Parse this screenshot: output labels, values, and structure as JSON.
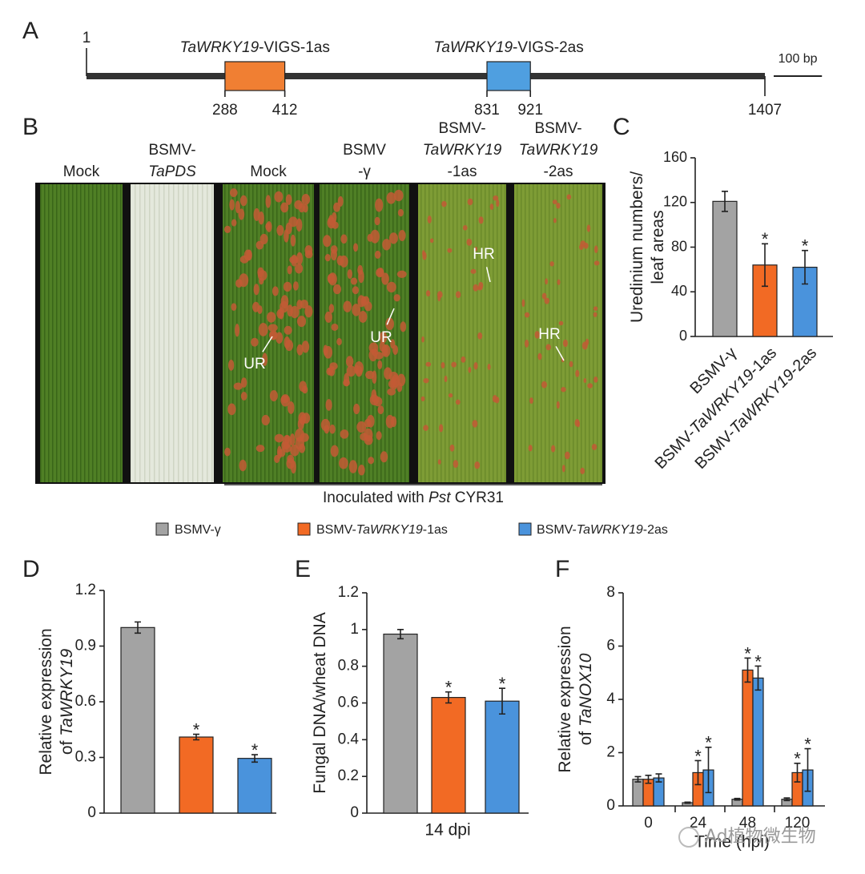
{
  "panel_labels": [
    "A",
    "B",
    "C",
    "D",
    "E",
    "F"
  ],
  "gene_map": {
    "start": 1,
    "end": 1407,
    "fragments": [
      {
        "label": [
          {
            "text": "TaWRKY19",
            "italic": true
          },
          {
            "text": "-VIGS-1as"
          }
        ],
        "start": 288,
        "end": 412,
        "color": "#f07f33"
      },
      {
        "label": [
          {
            "text": "TaWRKY19",
            "italic": true
          },
          {
            "text": "-VIGS-2as"
          }
        ],
        "start": 831,
        "end": 921,
        "color": "#4f9fe0"
      }
    ],
    "scale_bar": {
      "length": 100,
      "label": "100 bp"
    }
  },
  "leaf_panel": {
    "labels": [
      [
        [
          {
            "text": "Mock"
          }
        ]
      ],
      [
        [
          {
            "text": "BSMV-"
          }
        ],
        [
          {
            "text": "TaPDS",
            "italic": true
          }
        ]
      ],
      [
        [
          {
            "text": "Mock"
          }
        ]
      ],
      [
        [
          {
            "text": "BSMV"
          }
        ],
        [
          {
            "text": "-γ"
          }
        ]
      ],
      [
        [
          {
            "text": "BSMV-"
          }
        ],
        [
          {
            "text": "TaWRKY19",
            "italic": true
          }
        ],
        [
          {
            "text": "-1as"
          }
        ]
      ],
      [
        [
          {
            "text": "BSMV-"
          }
        ],
        [
          {
            "text": "TaWRKY19",
            "italic": true
          }
        ],
        [
          {
            "text": "-2as"
          }
        ]
      ]
    ],
    "annotations": [
      {
        "leaf": 2,
        "text": "UR"
      },
      {
        "leaf": 3,
        "text": "UR"
      },
      {
        "leaf": 4,
        "text": "HR"
      },
      {
        "leaf": 5,
        "text": "HR"
      }
    ],
    "inoculation": [
      {
        "text": "Inoculated with "
      },
      {
        "text": "Pst",
        "italic": true
      },
      {
        "text": " CYR31"
      }
    ]
  },
  "legend": [
    {
      "label": [
        {
          "text": "BSMV-γ"
        }
      ],
      "color": "#a3a3a3"
    },
    {
      "label": [
        {
          "text": "BSMV-"
        },
        {
          "text": "TaWRKY19",
          "italic": true
        },
        {
          "text": "-1as"
        }
      ],
      "color": "#f26a24"
    },
    {
      "label": [
        {
          "text": "BSMV-"
        },
        {
          "text": "TaWRKY19",
          "italic": true
        },
        {
          "text": "-2as"
        }
      ],
      "color": "#4a93dc"
    }
  ],
  "watermark": "Ad植物微生物",
  "chart_data": [
    {
      "type": "bar",
      "panel": "C",
      "ylabel": [
        [
          {
            "text": "Uredinium numbers/"
          }
        ],
        [
          {
            "text": "leaf areas"
          }
        ]
      ],
      "categories": [
        [
          {
            "text": "BSMV-γ"
          }
        ],
        [
          {
            "text": "BSMV-"
          },
          {
            "text": "TaWRKY19",
            "italic": true
          },
          {
            "text": "-1as"
          }
        ],
        [
          {
            "text": "BSMV-"
          },
          {
            "text": "TaWRKY19",
            "italic": true
          },
          {
            "text": "-2as"
          }
        ]
      ],
      "values": [
        121,
        64,
        62
      ],
      "errors": [
        9,
        19,
        15
      ],
      "significance": [
        null,
        "*",
        "*"
      ],
      "colors": [
        "#a3a3a3",
        "#f26a24",
        "#4a93dc"
      ],
      "ylim": [
        0,
        160
      ],
      "yticks": [
        0,
        40,
        80,
        120,
        160
      ]
    },
    {
      "type": "bar",
      "panel": "D",
      "ylabel": [
        [
          {
            "text": "Relative expression"
          }
        ],
        [
          {
            "text": "of "
          },
          {
            "text": "TaWRKY19",
            "italic": true
          }
        ]
      ],
      "values": [
        1.0,
        0.41,
        0.295
      ],
      "errors": [
        0.03,
        0.015,
        0.02
      ],
      "significance": [
        null,
        "*",
        "*"
      ],
      "colors": [
        "#a3a3a3",
        "#f26a24",
        "#4a93dc"
      ],
      "ylim": [
        0,
        1.2
      ],
      "yticks": [
        0,
        0.3,
        0.6,
        0.9,
        1.2
      ]
    },
    {
      "type": "bar",
      "panel": "E",
      "ylabel": [
        [
          {
            "text": "Fungal DNA/wheat DNA"
          }
        ]
      ],
      "xlabel": "14 dpi",
      "values": [
        0.975,
        0.63,
        0.61
      ],
      "errors": [
        0.025,
        0.03,
        0.07
      ],
      "significance": [
        null,
        "*",
        "*"
      ],
      "colors": [
        "#a3a3a3",
        "#f26a24",
        "#4a93dc"
      ],
      "ylim": [
        0,
        1.2
      ],
      "yticks": [
        0,
        0.2,
        0.4,
        0.6,
        0.8,
        1,
        1.2
      ]
    },
    {
      "type": "grouped_bar",
      "panel": "F",
      "ylabel": [
        [
          {
            "text": "Relative expression"
          }
        ],
        [
          {
            "text": "of "
          },
          {
            "text": "TaNOX10",
            "italic": true
          }
        ]
      ],
      "xlabel": "Time (hpi)",
      "categories": [
        "0",
        "24",
        "48",
        "120"
      ],
      "series": [
        {
          "color": "#a3a3a3",
          "values": [
            1.0,
            0.12,
            0.25,
            0.25
          ],
          "errors": [
            0.1,
            0.02,
            0.03,
            0.05
          ],
          "significance": [
            null,
            null,
            null,
            null
          ]
        },
        {
          "color": "#f26a24",
          "values": [
            1.0,
            1.25,
            5.1,
            1.25
          ],
          "errors": [
            0.15,
            0.45,
            0.45,
            0.35
          ],
          "significance": [
            null,
            "*",
            "*",
            "*"
          ]
        },
        {
          "color": "#4a93dc",
          "values": [
            1.05,
            1.35,
            4.8,
            1.35
          ],
          "errors": [
            0.15,
            0.85,
            0.45,
            0.8
          ],
          "significance": [
            null,
            "*",
            "*",
            "*"
          ]
        }
      ],
      "ylim": [
        0,
        8
      ],
      "yticks": [
        0,
        2,
        4,
        6,
        8
      ]
    }
  ]
}
